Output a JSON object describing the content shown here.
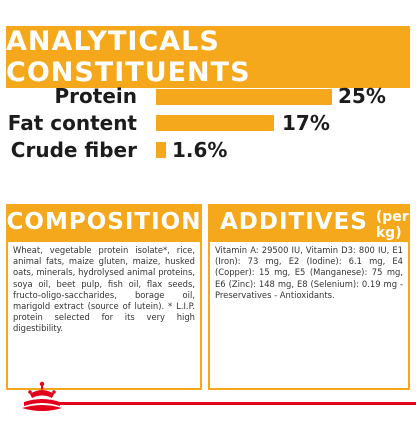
{
  "analytics": {
    "title": "ANALYTICALS CONSTITUENTS",
    "rows": [
      {
        "label": "Protein",
        "value": "25%",
        "level": 25
      },
      {
        "label": "Fat content",
        "value": "17%",
        "level": 17
      },
      {
        "label": "Crude fiber",
        "value": "1.6%",
        "level": 1.6
      }
    ]
  },
  "composition": {
    "title": "COMPOSITION",
    "text": "Wheat, vegetable protein isolate*, rice, animal fats, maize gluten, maize, husked oats, minerals, hydrolysed animal proteins, soya oil, beet pulp, fish oil, flax seeds, fructo-oligo-saccharides, borage oil, marigold extract (source of lutein). * L.I.P. protein selected for its very high digestibility."
  },
  "additives": {
    "title": "ADDITIVES",
    "subtitle": "(per kg)",
    "text": "Vitamin A: 29500 IU, Vitamin D3: 800 IU, E1 (Iron): 73 mg, E2 (Iodine): 6.1 mg, E4 (Copper): 15 mg, E5 (Manganese): 75 mg, E6 (Zinc): 148 mg, E8 (Selenium): 0.19 mg - Preservatives - Antioxidants."
  },
  "colors": {
    "accent": "#f5a81c",
    "brand_red": "#e2001a",
    "text": "#1c1c1c"
  },
  "logo": {
    "name": "royal-canin-crown-icon"
  }
}
